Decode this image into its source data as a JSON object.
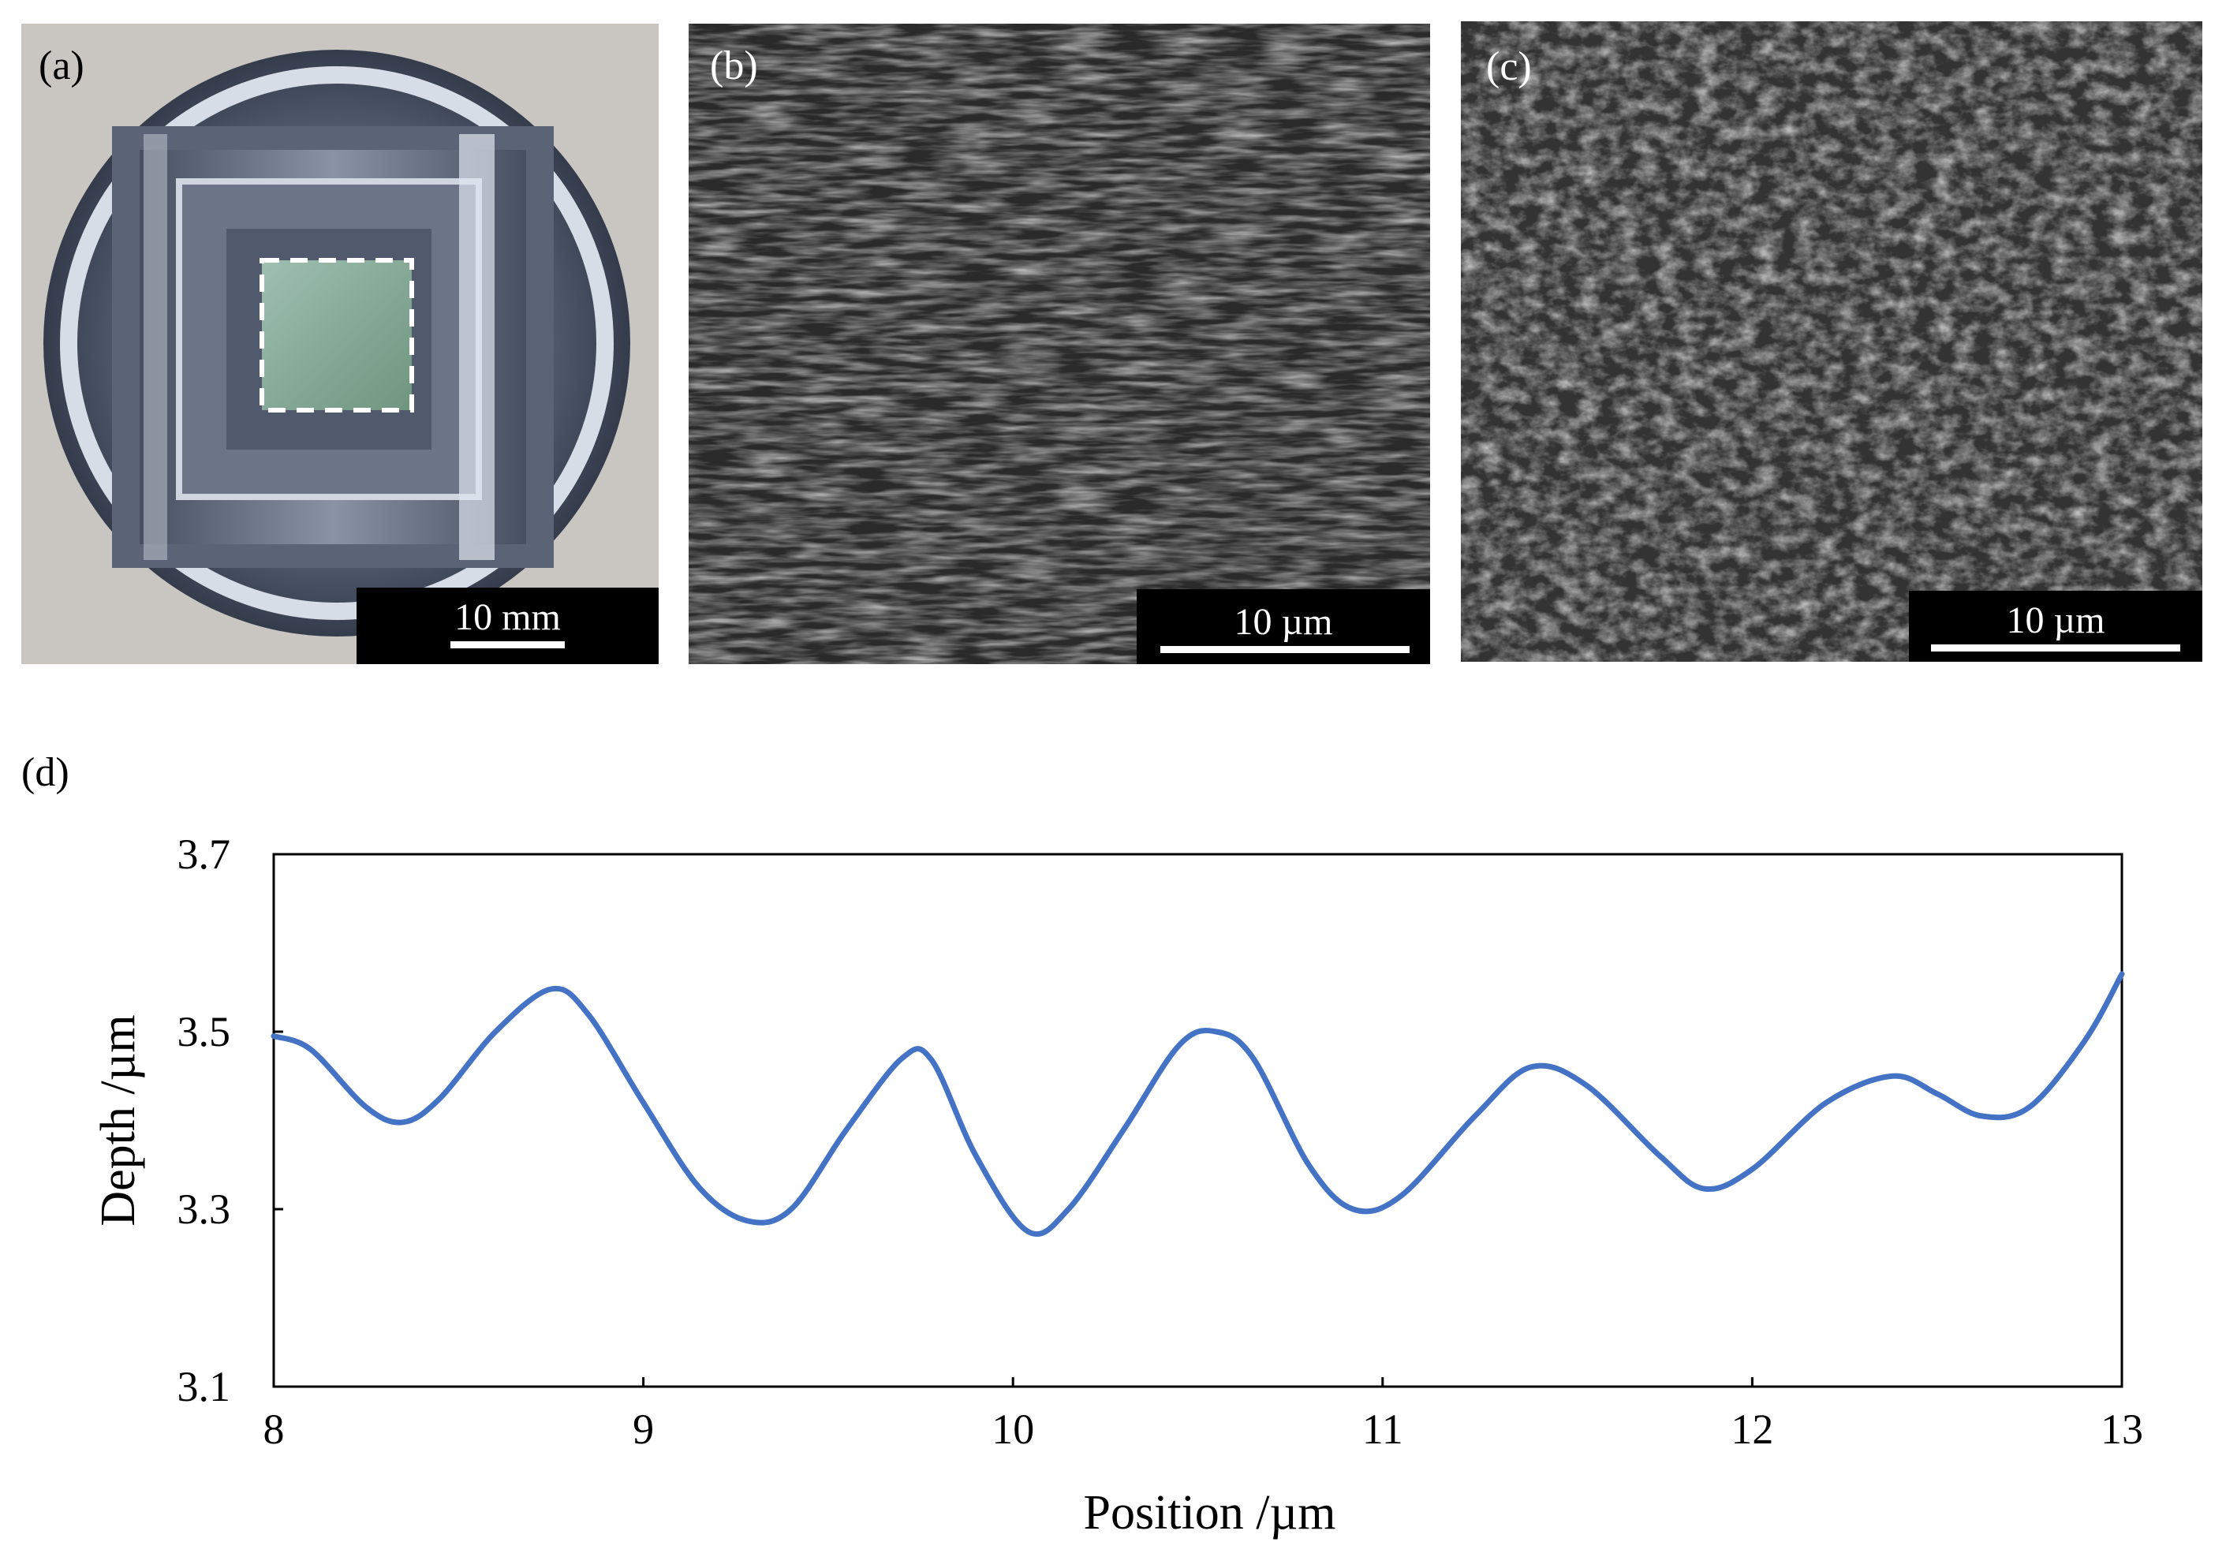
{
  "panels": {
    "a": {
      "label": "(a)",
      "scale_label": "10 mm"
    },
    "b": {
      "label": "(b)",
      "scale_label": "10 µm"
    },
    "c": {
      "label": "(c)",
      "scale_label": "10 µm"
    },
    "d": {
      "label": "(d)"
    }
  },
  "chart_data": {
    "type": "line",
    "xlabel": "Position /µm",
    "ylabel": "Depth /µm",
    "xlim": [
      8,
      13
    ],
    "ylim": [
      3.1,
      3.7
    ],
    "x_ticks": [
      "8",
      "9",
      "10",
      "11",
      "12",
      "13"
    ],
    "y_ticks": [
      "3.1",
      "3.3",
      "3.5",
      "3.7"
    ],
    "grid": false,
    "legend": "none",
    "series": [
      {
        "color": "#4472C4",
        "x": [
          8.0,
          8.1,
          8.25,
          8.35,
          8.45,
          8.6,
          8.75,
          8.85,
          9.0,
          9.15,
          9.28,
          9.4,
          9.55,
          9.7,
          9.78,
          9.9,
          10.04,
          10.15,
          10.3,
          10.45,
          10.55,
          10.65,
          10.8,
          10.92,
          11.05,
          11.25,
          11.4,
          11.55,
          11.75,
          11.87,
          12.0,
          12.2,
          12.38,
          12.5,
          12.62,
          12.75,
          12.9,
          13.0
        ],
        "y": [
          3.495,
          3.48,
          3.415,
          3.398,
          3.425,
          3.5,
          3.548,
          3.52,
          3.42,
          3.325,
          3.287,
          3.3,
          3.39,
          3.47,
          3.468,
          3.36,
          3.275,
          3.3,
          3.39,
          3.485,
          3.5,
          3.47,
          3.35,
          3.3,
          3.315,
          3.405,
          3.46,
          3.44,
          3.36,
          3.323,
          3.345,
          3.42,
          3.45,
          3.43,
          3.405,
          3.415,
          3.49,
          3.565
        ]
      }
    ]
  }
}
